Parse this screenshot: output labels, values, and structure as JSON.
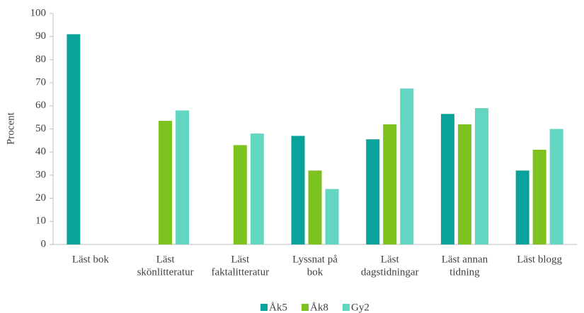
{
  "chart_data": {
    "type": "bar",
    "y_label": "Procent",
    "categories": [
      [
        "Läst bok"
      ],
      [
        "Läst",
        "skönlitteratur"
      ],
      [
        "Läst",
        "faktalitteratur"
      ],
      [
        "Lyssnat på",
        "bok"
      ],
      [
        "Läst",
        "dagstidningar"
      ],
      [
        "Läst annan",
        "tidning"
      ],
      [
        "Läst blogg"
      ]
    ],
    "series": [
      {
        "name": "Åk5",
        "color": "#0aa39b",
        "values": [
          91,
          null,
          null,
          47,
          45.5,
          56.5,
          32
        ]
      },
      {
        "name": "Åk8",
        "color": "#7dc21e",
        "values": [
          null,
          53.5,
          43,
          32,
          52,
          52,
          41
        ]
      },
      {
        "name": "Gy2",
        "color": "#62d6c0",
        "values": [
          null,
          58,
          48,
          24,
          67.5,
          59,
          50
        ]
      }
    ],
    "ylim": [
      0,
      100
    ],
    "yticks": [
      0,
      10,
      20,
      30,
      40,
      50,
      60,
      70,
      80,
      90,
      100
    ],
    "grid": false,
    "legend": "bottom"
  }
}
